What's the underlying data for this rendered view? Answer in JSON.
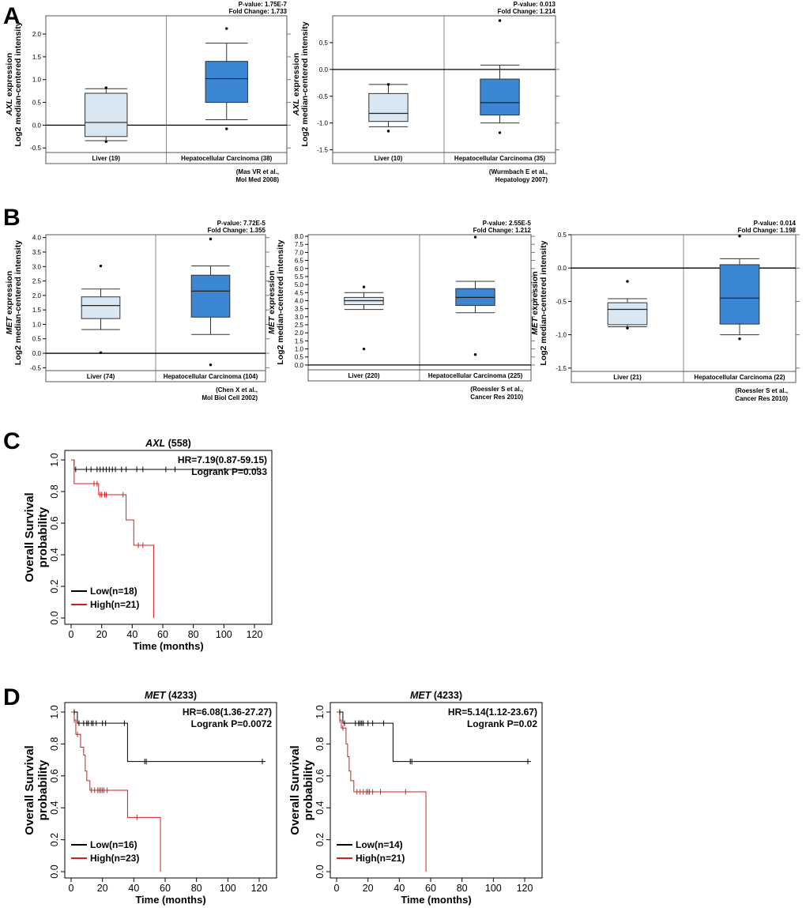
{
  "colors": {
    "liver_fill": "#d9e7f3",
    "hcc_fill": "#3b87d4",
    "high_line": "#d11f1f",
    "low_line": "#000000",
    "frame": "#555555"
  },
  "panels": {
    "A": {
      "label": "A",
      "boxplots": [
        {
          "pvalue": "P-value: 1.75E-7",
          "fold": "Fold Change: 1.733",
          "ylabel_gene": "AXL",
          "ylabel_rest": " expression",
          "ylabel2": "Log2 median-centered intensity",
          "ylim": [
            -0.6,
            2.4
          ],
          "ticks": [
            -0.5,
            0,
            0.5,
            1,
            1.5,
            2
          ],
          "tick_labels": [
            "-0.5",
            "0.0",
            "0.5",
            "1.0",
            "1.5",
            "2.0"
          ],
          "groups": [
            {
              "name": "Liver (19)",
              "min": -0.34,
              "q1": -0.25,
              "median": 0.06,
              "q3": 0.7,
              "max": 0.8,
              "outliers": [
                -0.36,
                0.82
              ]
            },
            {
              "name": "Hepatocellular Carcinoma (38)",
              "min": 0.12,
              "q1": 0.5,
              "median": 1.02,
              "q3": 1.4,
              "max": 1.8,
              "outliers": [
                2.12,
                -0.08
              ]
            }
          ],
          "source1": "(Mas VR et al.,",
          "source2": "Mol Med 2008)"
        },
        {
          "pvalue": "P-value: 0.013",
          "fold": "Fold Change: 1.214",
          "ylabel_gene": "AXL",
          "ylabel_rest": " expression",
          "ylabel2": "Log2 median-centered intensity",
          "ylim": [
            -1.55,
            1.0
          ],
          "ticks": [
            -1.5,
            -1,
            -0.5,
            0,
            0.5
          ],
          "tick_labels": [
            "-1.5",
            "-1.0",
            "-0.5",
            "0.0",
            "0.5"
          ],
          "groups": [
            {
              "name": "Liver (10)",
              "min": -1.07,
              "q1": -0.97,
              "median": -0.82,
              "q3": -0.45,
              "max": -0.28,
              "outliers": [
                -1.15,
                -0.28
              ]
            },
            {
              "name": "Hepatocellular Carcinoma (35)",
              "min": -1.0,
              "q1": -0.85,
              "median": -0.62,
              "q3": -0.18,
              "max": 0.08,
              "outliers": [
                0.91,
                -1.18
              ]
            }
          ],
          "source1": "(Wurmbach E et al.,",
          "source2": "Hepatology 2007)"
        }
      ]
    },
    "B": {
      "label": "B",
      "boxplots": [
        {
          "pvalue": "P-value: 7.72E-5",
          "fold": "Fold Change: 1.355",
          "ylabel_gene": "MET",
          "ylabel_rest": " expression",
          "ylabel2": "Log2 median-centered intensity",
          "ylim": [
            -0.6,
            4.1
          ],
          "ticks": [
            -0.5,
            0,
            0.5,
            1,
            1.5,
            2,
            2.5,
            3,
            3.5,
            4
          ],
          "tick_labels": [
            "-0.5",
            "0.0",
            "0.5",
            "1.0",
            "1.5",
            "2.0",
            "2.5",
            "3.0",
            "3.5",
            "4.0"
          ],
          "groups": [
            {
              "name": "Liver (74)",
              "min": 0.82,
              "q1": 1.2,
              "median": 1.65,
              "q3": 1.95,
              "max": 2.22,
              "outliers": [
                3.02,
                0.02
              ]
            },
            {
              "name": "Hepatocellular Carcinoma (104)",
              "min": 0.65,
              "q1": 1.25,
              "median": 2.15,
              "q3": 2.7,
              "max": 3.02,
              "outliers": [
                3.95,
                -0.4
              ]
            }
          ],
          "source1": "(Chen X et al.,",
          "source2": "Mol Biol Cell 2002)"
        },
        {
          "pvalue": "P-value: 2.55E-5",
          "fold": "Fold Change: 1.212",
          "ylabel_gene": "MET",
          "ylabel_rest": " expression",
          "ylabel2": "Log2 median-centered intensity",
          "ylim": [
            -0.3,
            8.1
          ],
          "ticks": [
            0,
            0.5,
            1,
            1.5,
            2,
            2.5,
            3,
            3.5,
            4,
            4.5,
            5,
            5.5,
            6,
            6.5,
            7,
            7.5,
            8
          ],
          "tick_labels": [
            "0.0",
            "0.5",
            "1.0",
            "1.5",
            "2.0",
            "2.5",
            "3.0",
            "3.5",
            "4.0",
            "4.5",
            "5.0",
            "5.5",
            "6.0",
            "6.5",
            "7.0",
            "7.5",
            "8.0"
          ],
          "groups": [
            {
              "name": "Liver (220)",
              "min": 3.45,
              "q1": 3.75,
              "median": 4.0,
              "q3": 4.2,
              "max": 4.5,
              "outliers": [
                4.85,
                1.0
              ]
            },
            {
              "name": "Hepatocellular Carcinoma (225)",
              "min": 3.25,
              "q1": 3.7,
              "median": 4.2,
              "q3": 4.75,
              "max": 5.2,
              "outliers": [
                7.95,
                0.65
              ]
            }
          ],
          "source1": "(Roessler S et al.,",
          "source2": "Cancer Res 2010)"
        },
        {
          "pvalue": "P-value: 0.014",
          "fold": "Fold Change: 1.198",
          "ylabel_gene": "MET",
          "ylabel_rest": " expression",
          "ylabel2": "Log2 median-centered intensity",
          "ylim": [
            -1.55,
            0.5
          ],
          "ticks": [
            -1.5,
            -1,
            -0.5,
            0,
            0.5
          ],
          "tick_labels": [
            "-1.5",
            "-1.0",
            "-0.5",
            "0.0",
            "0.5"
          ],
          "groups": [
            {
              "name": "Liver (21)",
              "min": -0.88,
              "q1": -0.85,
              "median": -0.62,
              "q3": -0.52,
              "max": -0.46,
              "outliers": [
                -0.9,
                -0.2
              ]
            },
            {
              "name": "Hepatocellular Carcinoma (22)",
              "min": -1.0,
              "q1": -0.84,
              "median": -0.45,
              "q3": 0.05,
              "max": 0.14,
              "outliers": [
                0.48,
                -1.06
              ]
            }
          ],
          "source1": "(Roessler S et al.,",
          "source2": "Cancer Res 2010)"
        }
      ]
    },
    "C": {
      "label": "C",
      "km": [
        {
          "title_gene": "AXL",
          "title_rest": " (558)",
          "hr": "HR=7.19(0.87-59.15)",
          "logrank": "Logrank P=0.033",
          "legend": [
            "Low(n=18)",
            "High(n=21)"
          ],
          "xlabel": "Time (months)",
          "ylabel1": "Overall Survival",
          "ylabel2": "probability",
          "xlim": [
            0,
            120
          ],
          "xticks": [
            0,
            20,
            40,
            60,
            80,
            100,
            120
          ],
          "yticks": [
            0.0,
            0.2,
            0.4,
            0.6,
            0.8,
            1.0
          ],
          "ytick_labels": [
            "0.0",
            "0.2",
            "0.4",
            "0.6",
            "0.8",
            "1.0"
          ],
          "low_steps": [
            [
              0,
              1.0
            ],
            [
              2,
              0.94
            ],
            [
              122,
              0.94
            ]
          ],
          "low_censors": [
            3,
            10,
            13,
            17,
            19,
            21,
            23,
            25,
            27,
            29,
            33,
            36,
            43,
            47,
            62,
            68,
            122
          ],
          "high_steps": [
            [
              0,
              1.0
            ],
            [
              2,
              0.85
            ],
            [
              18,
              0.78
            ],
            [
              36,
              0.62
            ],
            [
              41,
              0.46
            ],
            [
              53,
              0.46
            ],
            [
              54,
              0.0
            ]
          ],
          "high_censors": [
            15,
            17,
            19,
            20,
            22,
            23,
            34,
            44,
            47
          ]
        }
      ]
    },
    "D": {
      "label": "D",
      "km": [
        {
          "title_gene": "MET",
          "title_rest": " (4233)",
          "hr": "HR=6.08(1.36-27.27)",
          "logrank": "Logrank P=0.0072",
          "legend": [
            "Low(n=16)",
            "High(n=23)"
          ],
          "xlabel": "Time (months)",
          "ylabel1": "Overall Survival",
          "ylabel2": "probability",
          "xlim": [
            0,
            120
          ],
          "xticks": [
            0,
            20,
            40,
            60,
            80,
            100,
            120
          ],
          "yticks": [
            0.0,
            0.2,
            0.4,
            0.6,
            0.8,
            1.0
          ],
          "ytick_labels": [
            "0.0",
            "0.2",
            "0.4",
            "0.6",
            "0.8",
            "1.0"
          ],
          "low_steps": [
            [
              0,
              1.0
            ],
            [
              4,
              0.93
            ],
            [
              36,
              0.93
            ],
            [
              36,
              0.69
            ],
            [
              124,
              0.69
            ]
          ],
          "low_censors": [
            2,
            5,
            8,
            10,
            11,
            13,
            14,
            16,
            20,
            22,
            34,
            47,
            48,
            122
          ],
          "high_steps": [
            [
              0,
              1.0
            ],
            [
              2,
              0.95
            ],
            [
              3,
              0.86
            ],
            [
              6,
              0.78
            ],
            [
              8,
              0.73
            ],
            [
              9,
              0.63
            ],
            [
              10,
              0.57
            ],
            [
              12,
              0.51
            ],
            [
              36,
              0.34
            ],
            [
              56,
              0.34
            ],
            [
              57,
              0.0
            ]
          ],
          "high_censors": [
            2,
            4,
            13,
            15,
            17,
            18,
            19,
            20,
            21,
            23,
            42
          ]
        },
        {
          "title_gene": "MET",
          "title_rest": " (4233)",
          "hr": "HR=5.14(1.12-23.67)",
          "logrank": "Logrank P=0.02",
          "legend": [
            "Low(n=14)",
            "High(n=21)"
          ],
          "xlabel": "Time (months)",
          "ylabel1": "Overall Survival",
          "ylabel2": "probability",
          "xlim": [
            0,
            120
          ],
          "xticks": [
            0,
            20,
            40,
            60,
            80,
            100,
            120
          ],
          "yticks": [
            0.0,
            0.2,
            0.4,
            0.6,
            0.8,
            1.0
          ],
          "ytick_labels": [
            "0.0",
            "0.2",
            "0.4",
            "0.6",
            "0.8",
            "1.0"
          ],
          "low_steps": [
            [
              0,
              1.0
            ],
            [
              4,
              0.93
            ],
            [
              36,
              0.93
            ],
            [
              36,
              0.69
            ],
            [
              124,
              0.69
            ]
          ],
          "low_censors": [
            2,
            5,
            12,
            14,
            15,
            16,
            17,
            20,
            23,
            30,
            47,
            48,
            122
          ],
          "high_steps": [
            [
              0,
              1.0
            ],
            [
              2,
              0.95
            ],
            [
              3,
              0.9
            ],
            [
              6,
              0.8
            ],
            [
              7,
              0.72
            ],
            [
              8,
              0.63
            ],
            [
              9,
              0.57
            ],
            [
              11,
              0.5
            ],
            [
              56,
              0.5
            ],
            [
              57,
              0.0
            ]
          ],
          "high_censors": [
            2,
            4,
            13,
            15,
            17,
            19,
            20,
            21,
            23,
            28,
            44
          ]
        }
      ]
    }
  },
  "chart_data": [
    {
      "type": "box",
      "title": "AXL expression (Mas VR et al., Mol Med 2008)",
      "categories": [
        "Liver (19)",
        "Hepatocellular Carcinoma (38)"
      ],
      "medians": [
        0.06,
        1.02
      ],
      "pvalue": 1.75e-07,
      "fold_change": 1.733
    },
    {
      "type": "box",
      "title": "AXL expression (Wurmbach E et al., Hepatology 2007)",
      "categories": [
        "Liver (10)",
        "Hepatocellular Carcinoma (35)"
      ],
      "medians": [
        -0.82,
        -0.62
      ],
      "pvalue": 0.013,
      "fold_change": 1.214
    },
    {
      "type": "box",
      "title": "MET expression (Chen X et al., Mol Biol Cell 2002)",
      "categories": [
        "Liver (74)",
        "Hepatocellular Carcinoma (104)"
      ],
      "medians": [
        1.65,
        2.15
      ],
      "pvalue": 7.72e-05,
      "fold_change": 1.355
    },
    {
      "type": "box",
      "title": "MET expression (Roessler S et al., Cancer Res 2010)",
      "categories": [
        "Liver (220)",
        "Hepatocellular Carcinoma (225)"
      ],
      "medians": [
        4.0,
        4.2
      ],
      "pvalue": 2.55e-05,
      "fold_change": 1.212
    },
    {
      "type": "box",
      "title": "MET expression (Roessler S et al., Cancer Res 2010)",
      "categories": [
        "Liver (21)",
        "Hepatocellular Carcinoma (22)"
      ],
      "medians": [
        -0.62,
        -0.45
      ],
      "pvalue": 0.014,
      "fold_change": 1.198
    },
    {
      "type": "line",
      "title": "AXL (558) Kaplan-Meier",
      "series": [
        {
          "name": "Low(n=18)",
          "final": 0.94
        },
        {
          "name": "High(n=21)",
          "final": 0.0
        }
      ],
      "hr": "7.19(0.87-59.15)",
      "logrank_p": 0.033
    },
    {
      "type": "line",
      "title": "MET (4233) Kaplan-Meier",
      "series": [
        {
          "name": "Low(n=16)",
          "final": 0.69
        },
        {
          "name": "High(n=23)",
          "final": 0.0
        }
      ],
      "hr": "6.08(1.36-27.27)",
      "logrank_p": 0.0072
    },
    {
      "type": "line",
      "title": "MET (4233) Kaplan-Meier",
      "series": [
        {
          "name": "Low(n=14)",
          "final": 0.69
        },
        {
          "name": "High(n=21)",
          "final": 0.0
        }
      ],
      "hr": "5.14(1.12-23.67)",
      "logrank_p": 0.02
    }
  ]
}
